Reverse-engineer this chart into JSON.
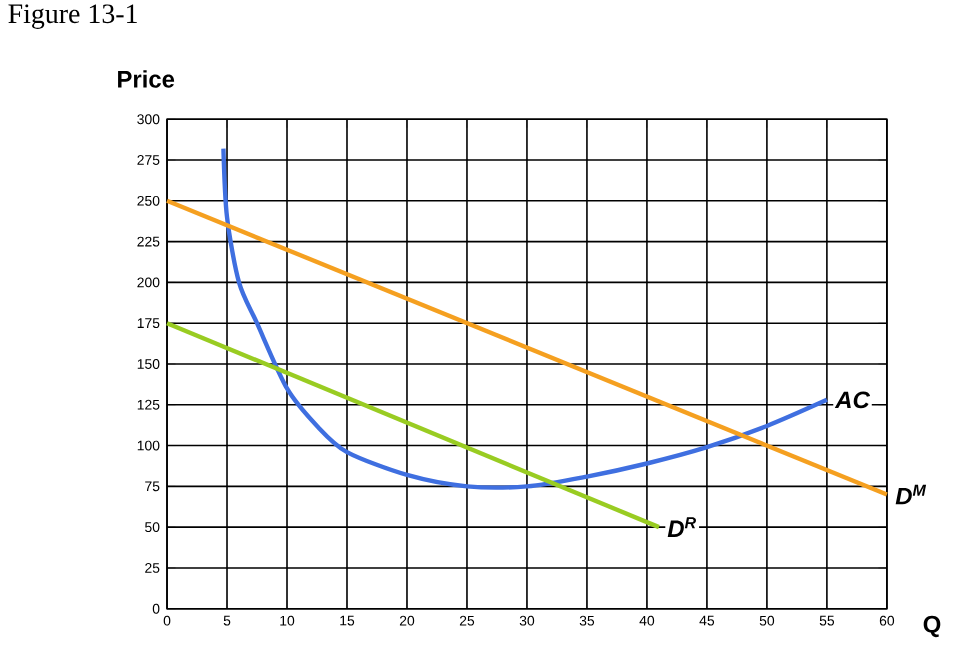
{
  "chart_data": {
    "type": "line",
    "title": "Figure 13-1",
    "xlabel": "Q",
    "ylabel": "Price",
    "xlim": [
      0,
      60
    ],
    "ylim": [
      0,
      300
    ],
    "xticks": [
      0,
      5,
      10,
      15,
      20,
      25,
      30,
      35,
      40,
      45,
      50,
      55,
      60
    ],
    "yticks": [
      0,
      25,
      50,
      75,
      100,
      125,
      150,
      175,
      200,
      225,
      250,
      275,
      300
    ],
    "grid": true,
    "marker": "none",
    "line_style": "solid",
    "series": [
      {
        "name": "AC",
        "color": "#3f6fe0",
        "x": [
          4.7,
          5,
          6,
          7.5,
          10,
          12.5,
          15,
          20,
          25,
          30,
          35,
          40,
          45,
          50,
          55
        ],
        "values": [
          282,
          240,
          200,
          175,
          135,
          112,
          96,
          82,
          75,
          75,
          81,
          89,
          99,
          112,
          128
        ]
      },
      {
        "name": "D$^{M}$",
        "color": "#f5a020",
        "x": [
          0,
          60
        ],
        "values": [
          250,
          70
        ]
      },
      {
        "name": "D$^{R}$",
        "color": "#99cc22",
        "x": [
          0,
          41
        ],
        "values": [
          175,
          50
        ]
      }
    ]
  }
}
